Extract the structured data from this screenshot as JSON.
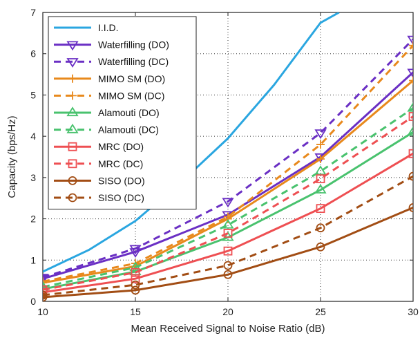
{
  "chart_data": {
    "type": "line",
    "title": "",
    "xlabel": "Mean Received Signal to Noise Ratio (dB)",
    "ylabel": "Capacity (bps/Hz)",
    "xlim": [
      10,
      30
    ],
    "ylim": [
      0,
      7
    ],
    "xticks": [
      10,
      15,
      20,
      25,
      30
    ],
    "yticks": [
      0,
      1,
      2,
      3,
      4,
      5,
      6,
      7
    ],
    "grid": true,
    "grid_style": "dotted",
    "legend_position": "top-left",
    "series": [
      {
        "name": "I.I.D.",
        "color": "#2aa6e0",
        "dash": "solid",
        "marker": "none",
        "x": [
          10,
          12.5,
          15,
          17.5,
          20,
          22.5,
          25,
          26
        ],
        "y": [
          0.72,
          1.25,
          1.95,
          2.9,
          3.95,
          5.25,
          6.75,
          7.0
        ]
      },
      {
        "name": "Waterfilling (DO)",
        "color": "#6a2fc4",
        "dash": "solid",
        "marker": "triangle-down",
        "x": [
          10,
          15,
          20,
          25,
          30
        ],
        "y": [
          0.55,
          1.2,
          2.1,
          3.5,
          5.55
        ]
      },
      {
        "name": "Waterfilling (DC)",
        "color": "#6a2fc4",
        "dash": "dashed",
        "marker": "triangle-down",
        "x": [
          10,
          15,
          20,
          25,
          30
        ],
        "y": [
          0.58,
          1.28,
          2.42,
          4.08,
          6.35
        ]
      },
      {
        "name": "MIMO SM (DO)",
        "color": "#e8891c",
        "dash": "solid",
        "marker": "plus",
        "x": [
          10,
          15,
          20,
          25,
          30
        ],
        "y": [
          0.45,
          0.85,
          2.0,
          3.45,
          5.35
        ]
      },
      {
        "name": "MIMO SM (DC)",
        "color": "#e8891c",
        "dash": "dashed",
        "marker": "plus",
        "x": [
          10,
          15,
          20,
          25,
          30
        ],
        "y": [
          0.48,
          0.92,
          2.05,
          3.8,
          6.2
        ]
      },
      {
        "name": "Alamouti (DO)",
        "color": "#49c26e",
        "dash": "solid",
        "marker": "triangle-up",
        "x": [
          10,
          15,
          20,
          25,
          30
        ],
        "y": [
          0.3,
          0.72,
          1.55,
          2.7,
          4.1
        ]
      },
      {
        "name": "Alamouti (DC)",
        "color": "#49c26e",
        "dash": "dashed",
        "marker": "triangle-up",
        "x": [
          10,
          15,
          20,
          25,
          30
        ],
        "y": [
          0.35,
          0.82,
          1.85,
          3.15,
          4.68
        ]
      },
      {
        "name": "MRC (DO)",
        "color": "#ee4f52",
        "dash": "solid",
        "marker": "square",
        "x": [
          10,
          15,
          20,
          25,
          30
        ],
        "y": [
          0.22,
          0.55,
          1.22,
          2.25,
          3.58
        ]
      },
      {
        "name": "MRC (DC)",
        "color": "#ee4f52",
        "dash": "dashed",
        "marker": "square",
        "x": [
          10,
          15,
          20,
          25,
          30
        ],
        "y": [
          0.28,
          0.7,
          1.65,
          2.97,
          4.48
        ]
      },
      {
        "name": "SISO (DO)",
        "color": "#a24d14",
        "dash": "solid",
        "marker": "circle",
        "x": [
          10,
          15,
          20,
          25,
          30
        ],
        "y": [
          0.1,
          0.27,
          0.65,
          1.32,
          2.27
        ]
      },
      {
        "name": "SISO (DC)",
        "color": "#a24d14",
        "dash": "dashed",
        "marker": "circle",
        "x": [
          10,
          15,
          20,
          25,
          30
        ],
        "y": [
          0.15,
          0.4,
          0.87,
          1.78,
          3.03
        ]
      }
    ]
  }
}
